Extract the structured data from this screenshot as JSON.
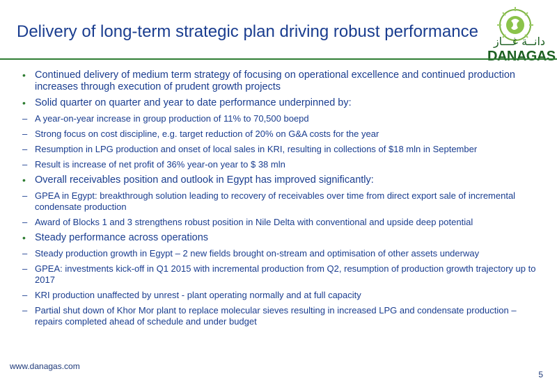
{
  "slide": {
    "title": "Delivery of long-term strategic plan driving robust performance",
    "page_number": "5",
    "footer_url": "www.danagas.com",
    "logo": {
      "name": "DANAGAS",
      "arabic": "دانــة غـــاز",
      "brand_color": "#1b5e20"
    }
  },
  "bullets": [
    {
      "level": 1,
      "text": "Continued delivery of medium term strategy of focusing on operational excellence and continued production increases through execution of prudent growth projects"
    },
    {
      "level": 1,
      "text": "Solid quarter on quarter and year to date performance underpinned by:"
    },
    {
      "level": 2,
      "text": "A year-on-year increase in group production of 11% to 70,500 boepd"
    },
    {
      "level": 2,
      "text": "Strong focus on cost discipline, e.g. target reduction of 20% on G&A costs for the year"
    },
    {
      "level": 2,
      "text": "Resumption in LPG production and onset of local sales in KRI, resulting in collections of $18 mln in September"
    },
    {
      "level": 2,
      "text": "Result is increase of net profit of 36% year-on year to $ 38 mln"
    },
    {
      "level": 1,
      "text": "Overall receivables position and outlook in Egypt has improved significantly:"
    },
    {
      "level": 2,
      "text": "GPEA in Egypt: breakthrough solution leading to recovery of receivables over time from direct export sale of incremental condensate production"
    },
    {
      "level": 2,
      "text": "Award of Blocks 1 and 3 strengthens robust position in Nile Delta with conventional and upside deep potential"
    },
    {
      "level": 1,
      "text": "Steady performance across operations"
    },
    {
      "level": 2,
      "text": "Steady production growth in Egypt – 2 new fields brought on-stream and optimisation of other assets underway"
    },
    {
      "level": 2,
      "text": "GPEA: investments kick-off in Q1 2015 with incremental production from Q2, resumption of production growth trajectory up to 2017"
    },
    {
      "level": 2,
      "text": "KRI production unaffected by unrest - plant operating normally and at full capacity"
    },
    {
      "level": 2,
      "text": "Partial shut down of Khor Mor plant to replace molecular sieves resulting in increased LPG and condensate production – repairs completed ahead of schedule and under budget"
    }
  ],
  "colors": {
    "title": "#1a3d8f",
    "rule": "#2e7d32",
    "bullet_level1": "#2e7d32"
  }
}
